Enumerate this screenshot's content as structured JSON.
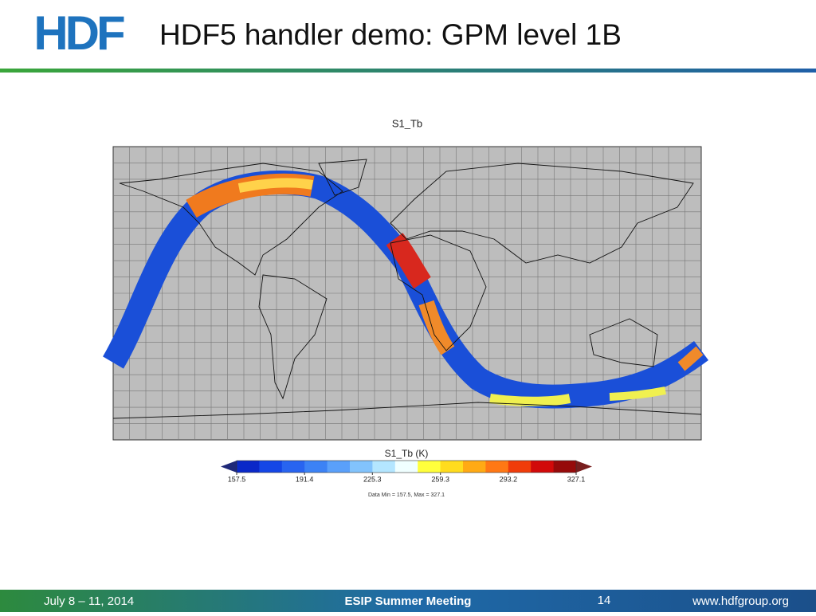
{
  "header": {
    "logo": "HDF",
    "title": "HDF5 handler demo: GPM level 1B"
  },
  "figure": {
    "title": "S1_Tb",
    "colorbar": {
      "title": "S1_Tb (K)",
      "ticks": [
        157.5,
        191.4,
        225.3,
        259.3,
        293.2,
        327.1
      ],
      "colors": [
        "#0a28c8",
        "#1446e6",
        "#2864f0",
        "#3c82f5",
        "#5aa0fa",
        "#82c3fc",
        "#b4e6ff",
        "#f0ffff",
        "#ffff3c",
        "#ffdc1e",
        "#ffaa14",
        "#ff7814",
        "#f03c0a",
        "#d20a0a",
        "#960a0a"
      ],
      "under_color": "#1e2878",
      "over_color": "#781e1e"
    },
    "note": "Data Min = 157.5, Max = 327.1"
  },
  "footer": {
    "date": "July 8 – 11, 2014",
    "event": "ESIP Summer Meeting",
    "page": "14",
    "url": "www.hdfgroup.org"
  }
}
